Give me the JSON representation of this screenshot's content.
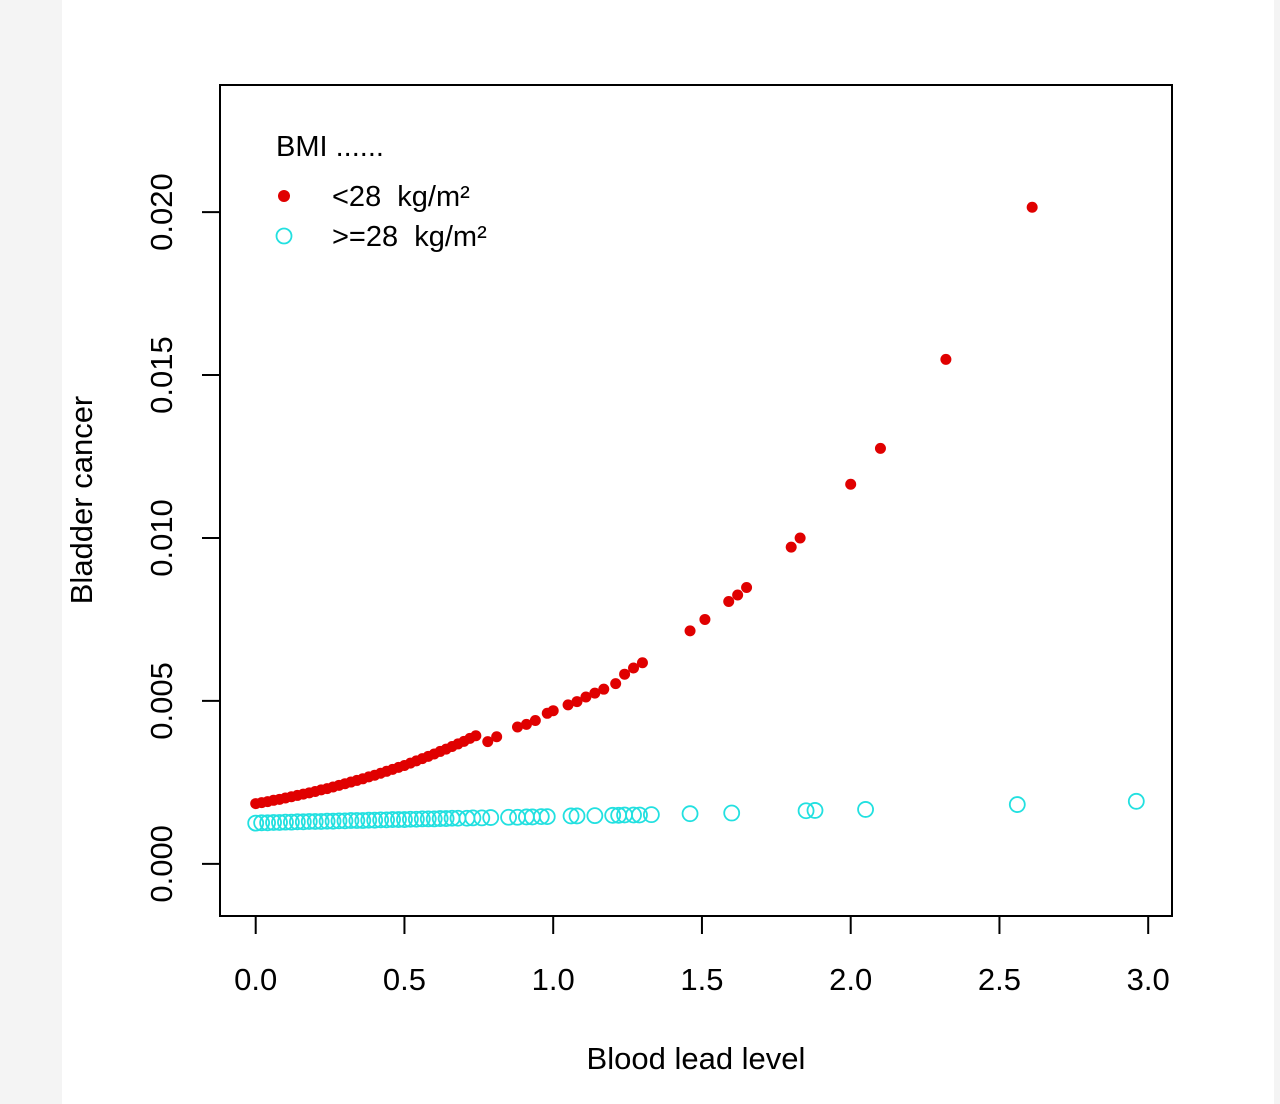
{
  "chart_data": {
    "type": "scatter",
    "title": "",
    "xlabel": "Blood lead level",
    "ylabel": "Bladder cancer",
    "xlim": [
      -0.12,
      3.08
    ],
    "ylim": [
      -0.0016,
      0.0239
    ],
    "x_ticks": [
      "0.0",
      "0.5",
      "1.0",
      "1.5",
      "2.0",
      "2.5",
      "3.0"
    ],
    "x_tick_values": [
      0,
      0.5,
      1.0,
      1.5,
      2.0,
      2.5,
      3.0
    ],
    "y_ticks": [
      "0.000",
      "0.005",
      "0.010",
      "0.015",
      "0.020"
    ],
    "y_tick_values": [
      0,
      0.005,
      0.01,
      0.015,
      0.02
    ],
    "grid": false,
    "legend": {
      "title": "BMI ......",
      "placement": "top-left",
      "entries": [
        {
          "label": "<28  kg/m²",
          "marker": "filled-circle",
          "color": "#e00000"
        },
        {
          "label": ">=28  kg/m²",
          "marker": "open-circle",
          "color": "#22e0e0"
        }
      ]
    },
    "series": [
      {
        "name": "<28  kg/m²",
        "color": "#e00000",
        "marker": "filled-circle",
        "points": [
          [
            0.0,
            0.00185
          ],
          [
            0.02,
            0.00188
          ],
          [
            0.04,
            0.00191
          ],
          [
            0.06,
            0.00195
          ],
          [
            0.08,
            0.00198
          ],
          [
            0.1,
            0.00202
          ],
          [
            0.12,
            0.00206
          ],
          [
            0.14,
            0.0021
          ],
          [
            0.16,
            0.00214
          ],
          [
            0.18,
            0.00218
          ],
          [
            0.2,
            0.00222
          ],
          [
            0.22,
            0.00227
          ],
          [
            0.24,
            0.00231
          ],
          [
            0.26,
            0.00236
          ],
          [
            0.28,
            0.00241
          ],
          [
            0.3,
            0.00246
          ],
          [
            0.32,
            0.00251
          ],
          [
            0.34,
            0.00256
          ],
          [
            0.36,
            0.00261
          ],
          [
            0.38,
            0.00267
          ],
          [
            0.4,
            0.00272
          ],
          [
            0.42,
            0.00278
          ],
          [
            0.44,
            0.00284
          ],
          [
            0.46,
            0.0029
          ],
          [
            0.48,
            0.00296
          ],
          [
            0.5,
            0.00302
          ],
          [
            0.52,
            0.00309
          ],
          [
            0.54,
            0.00316
          ],
          [
            0.56,
            0.00323
          ],
          [
            0.58,
            0.0033
          ],
          [
            0.6,
            0.00337
          ],
          [
            0.62,
            0.00345
          ],
          [
            0.64,
            0.00352
          ],
          [
            0.66,
            0.0036
          ],
          [
            0.68,
            0.00368
          ],
          [
            0.7,
            0.00376
          ],
          [
            0.72,
            0.00385
          ],
          [
            0.74,
            0.00393
          ],
          [
            0.78,
            0.00375
          ],
          [
            0.81,
            0.0039
          ],
          [
            0.88,
            0.0042
          ],
          [
            0.91,
            0.00428
          ],
          [
            0.94,
            0.0044
          ],
          [
            0.98,
            0.00462
          ],
          [
            1.0,
            0.0047
          ],
          [
            1.05,
            0.00488
          ],
          [
            1.08,
            0.00498
          ],
          [
            1.11,
            0.00512
          ],
          [
            1.14,
            0.00524
          ],
          [
            1.17,
            0.00536
          ],
          [
            1.21,
            0.00553
          ],
          [
            1.24,
            0.00582
          ],
          [
            1.27,
            0.00601
          ],
          [
            1.3,
            0.00617
          ],
          [
            1.46,
            0.00715
          ],
          [
            1.51,
            0.0075
          ],
          [
            1.59,
            0.00805
          ],
          [
            1.62,
            0.00825
          ],
          [
            1.65,
            0.00848
          ],
          [
            1.8,
            0.00972
          ],
          [
            1.83,
            0.01
          ],
          [
            2.0,
            0.01165
          ],
          [
            2.1,
            0.01275
          ],
          [
            2.32,
            0.01548
          ],
          [
            2.61,
            0.02015
          ]
        ]
      },
      {
        "name": ">=28  kg/m²",
        "color": "#22e0e0",
        "marker": "open-circle",
        "points": [
          [
            0.0,
            0.00125
          ],
          [
            0.02,
            0.00126
          ],
          [
            0.04,
            0.00126
          ],
          [
            0.06,
            0.00127
          ],
          [
            0.08,
            0.00127
          ],
          [
            0.1,
            0.00128
          ],
          [
            0.12,
            0.00128
          ],
          [
            0.14,
            0.00129
          ],
          [
            0.16,
            0.00129
          ],
          [
            0.18,
            0.0013
          ],
          [
            0.2,
            0.0013
          ],
          [
            0.22,
            0.0013
          ],
          [
            0.24,
            0.00131
          ],
          [
            0.26,
            0.00131
          ],
          [
            0.28,
            0.00132
          ],
          [
            0.3,
            0.00132
          ],
          [
            0.32,
            0.00133
          ],
          [
            0.34,
            0.00133
          ],
          [
            0.36,
            0.00133
          ],
          [
            0.38,
            0.00134
          ],
          [
            0.4,
            0.00134
          ],
          [
            0.42,
            0.00135
          ],
          [
            0.44,
            0.00135
          ],
          [
            0.46,
            0.00136
          ],
          [
            0.48,
            0.00136
          ],
          [
            0.5,
            0.00136
          ],
          [
            0.52,
            0.00137
          ],
          [
            0.54,
            0.00137
          ],
          [
            0.56,
            0.00138
          ],
          [
            0.58,
            0.00138
          ],
          [
            0.6,
            0.00138
          ],
          [
            0.62,
            0.00139
          ],
          [
            0.64,
            0.00139
          ],
          [
            0.66,
            0.0014
          ],
          [
            0.68,
            0.0014
          ],
          [
            0.71,
            0.0014
          ],
          [
            0.73,
            0.00141
          ],
          [
            0.76,
            0.00141
          ],
          [
            0.79,
            0.00142
          ],
          [
            0.85,
            0.00143
          ],
          [
            0.88,
            0.00143
          ],
          [
            0.91,
            0.00144
          ],
          [
            0.93,
            0.00144
          ],
          [
            0.96,
            0.00145
          ],
          [
            0.98,
            0.00145
          ],
          [
            1.06,
            0.00147
          ],
          [
            1.08,
            0.00147
          ],
          [
            1.14,
            0.00148
          ],
          [
            1.2,
            0.00149
          ],
          [
            1.22,
            0.00149
          ],
          [
            1.24,
            0.0015
          ],
          [
            1.27,
            0.0015
          ],
          [
            1.29,
            0.0015
          ],
          [
            1.33,
            0.00151
          ],
          [
            1.46,
            0.00154
          ],
          [
            1.6,
            0.00156
          ],
          [
            1.85,
            0.00163
          ],
          [
            1.88,
            0.00164
          ],
          [
            2.05,
            0.00167
          ],
          [
            2.56,
            0.00182
          ],
          [
            2.96,
            0.00192
          ]
        ]
      }
    ]
  }
}
